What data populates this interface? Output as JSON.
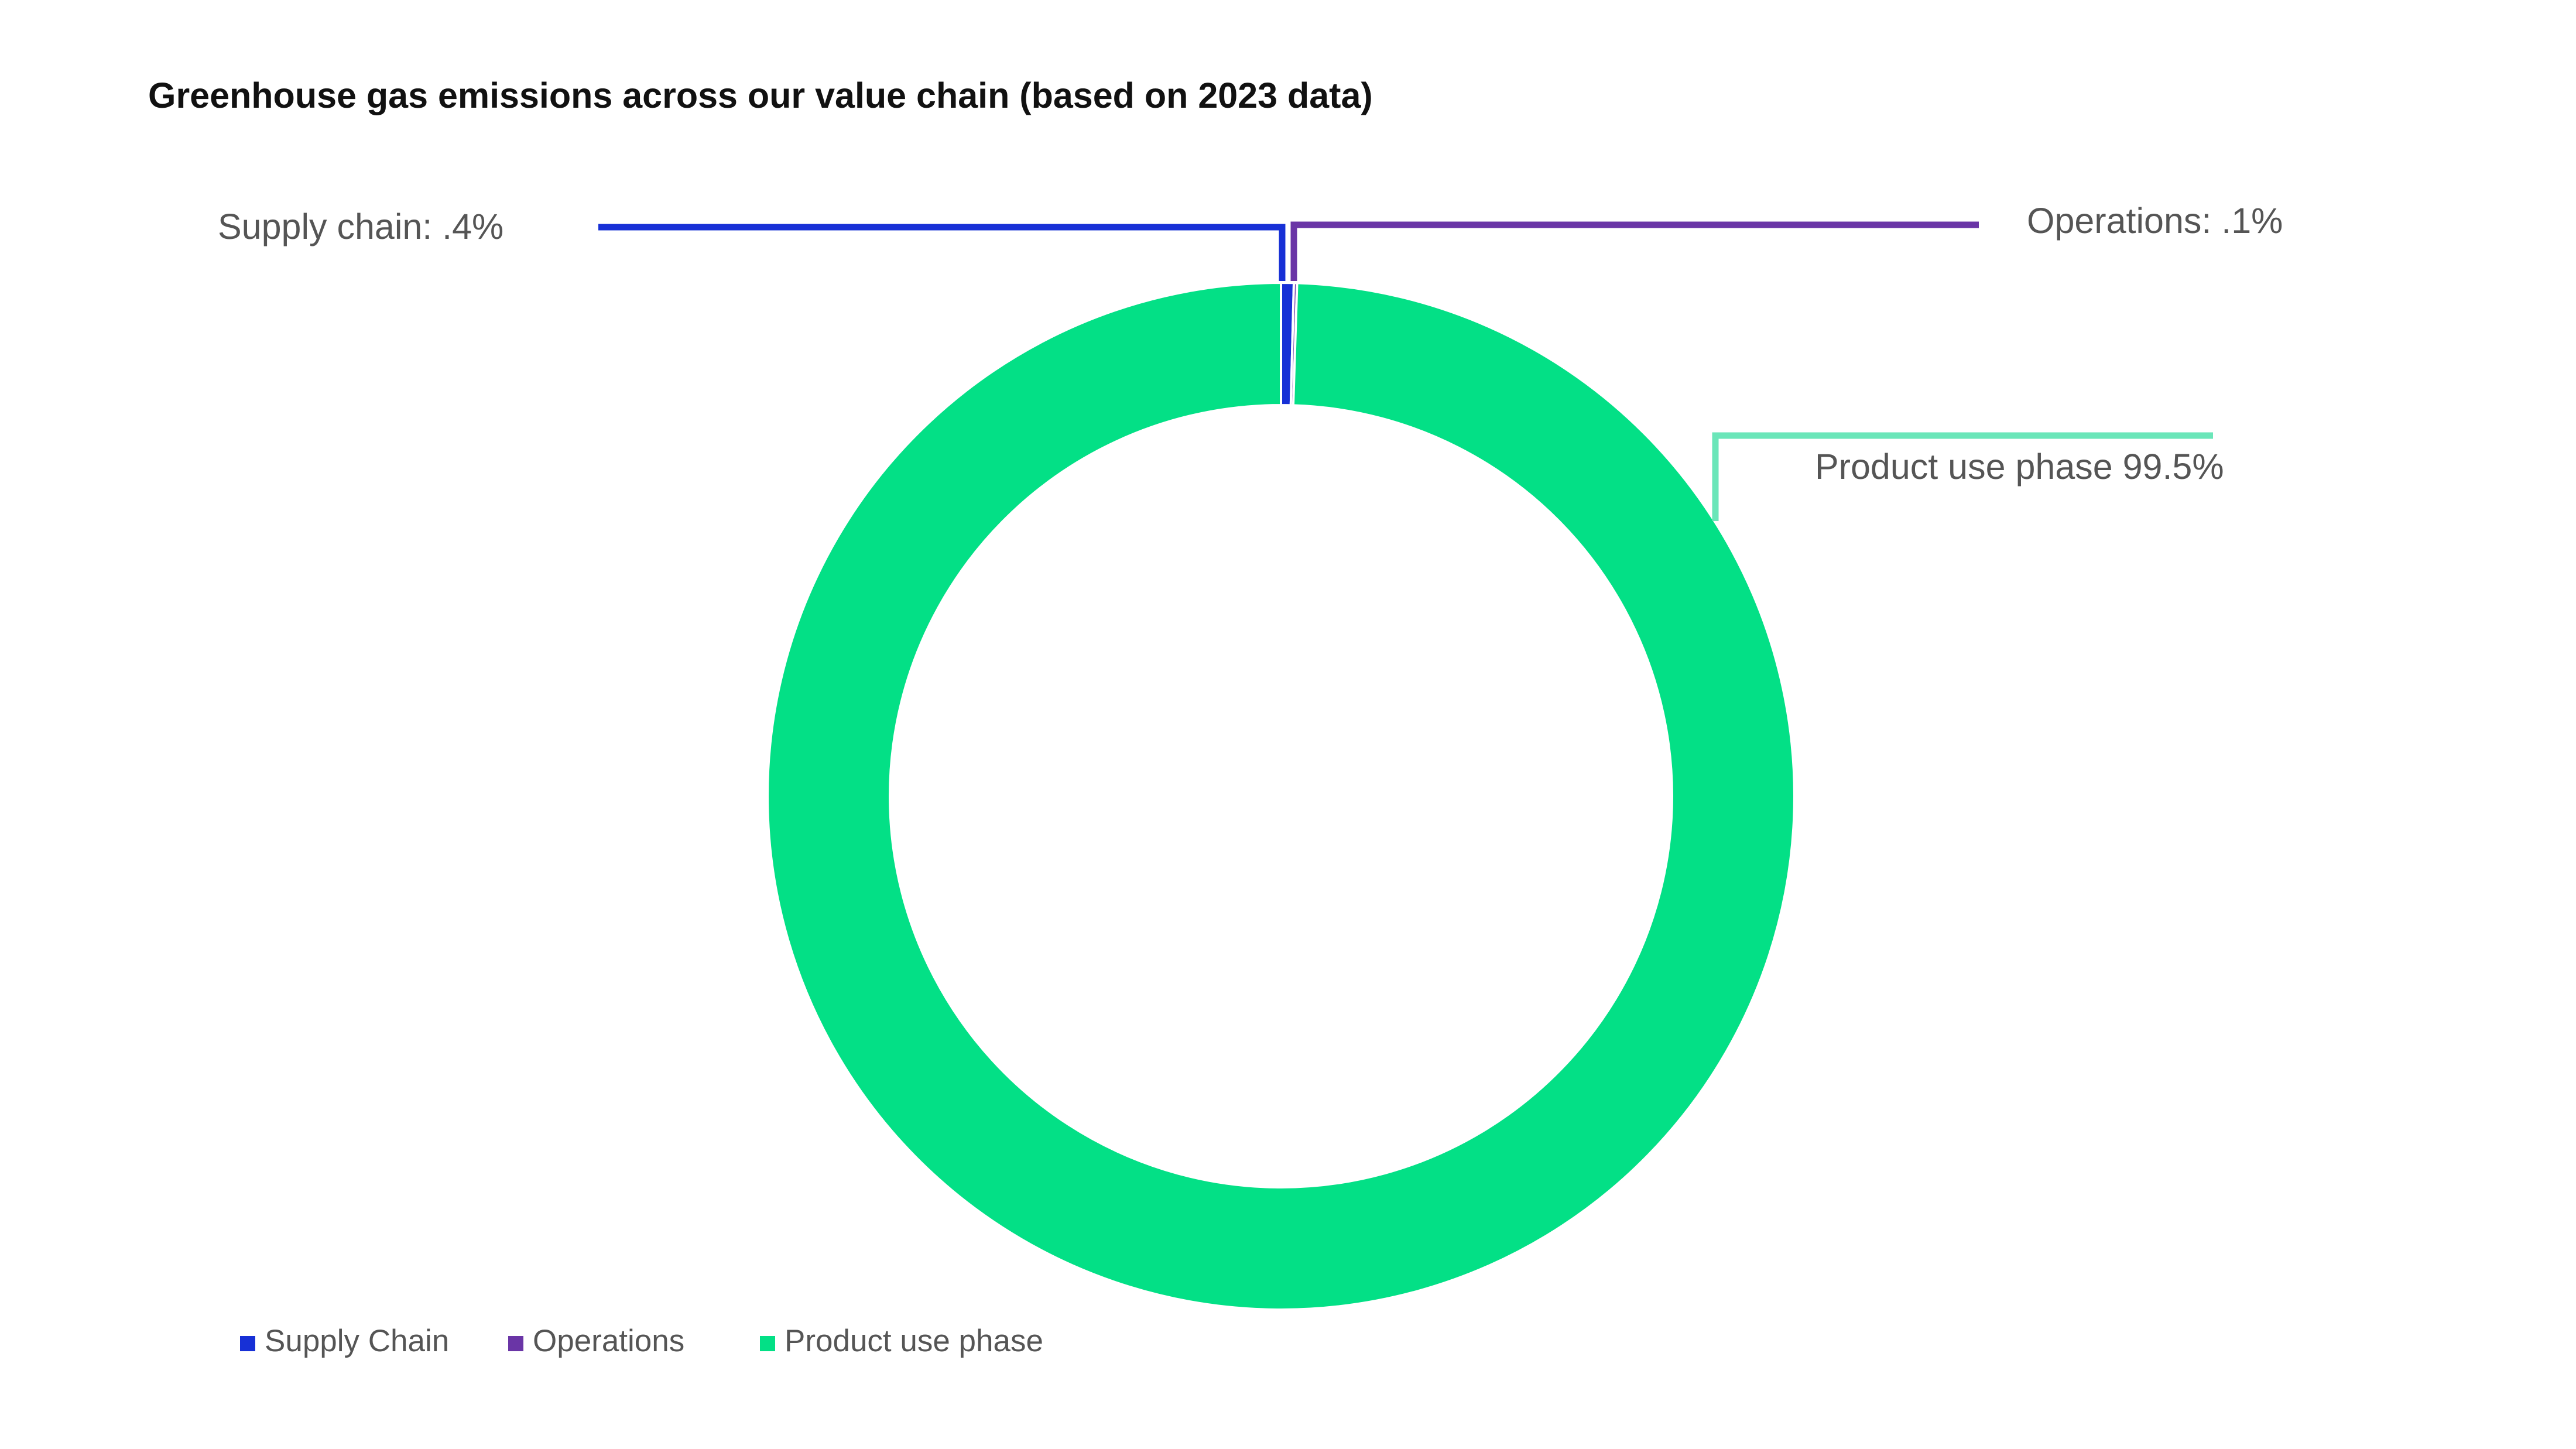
{
  "chart_data": {
    "type": "pie",
    "title": "Greenhouse gas emissions across our value chain (based on 2023 data)",
    "categories": [
      "Supply Chain",
      "Operations",
      "Product use phase"
    ],
    "values": [
      0.4,
      0.1,
      99.5
    ],
    "unit": "%",
    "donut": true,
    "data_labels": [
      "Supply chain: .4%",
      "Operations: .1%",
      "Product use phase 99.5%"
    ],
    "colors": [
      "#1730d6",
      "#6a35a6",
      "#03e086"
    ],
    "callout_colors": [
      "#1730d6",
      "#6a35a6",
      "#6be6b9"
    ],
    "legend": {
      "position": "bottom-left",
      "entries": [
        "Supply Chain",
        "Operations",
        "Product use phase"
      ]
    }
  }
}
